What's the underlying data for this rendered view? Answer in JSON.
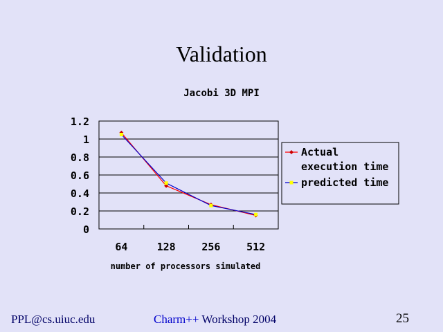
{
  "slide": {
    "title": "Validation",
    "footer_left": "PPL@cs.uiuc.edu",
    "footer_center_brand": "Charm++",
    "footer_center_rest": " Workshop 2004",
    "page_number": "25"
  },
  "chart_data": {
    "type": "line",
    "title": "Jacobi 3D MPI",
    "xlabel": "number of processors simulated",
    "ylabel": "",
    "categories": [
      "64",
      "128",
      "256",
      "512"
    ],
    "yticks": [
      "0",
      "0.2",
      "0.4",
      "0.6",
      "0.8",
      "1",
      "1.2"
    ],
    "ylim": [
      0,
      1.2
    ],
    "grid": true,
    "legend_position": "right",
    "series": [
      {
        "name_lines": [
          "Actual",
          "execution time"
        ],
        "values": [
          1.07,
          0.48,
          0.27,
          0.15
        ],
        "line_color": "#ff0000",
        "marker_color": "#cc0000",
        "marker": "diamond"
      },
      {
        "name_lines": [
          "predicted time"
        ],
        "values": [
          1.05,
          0.51,
          0.26,
          0.16
        ],
        "line_color": "#0000cc",
        "marker_color": "#ffff00",
        "marker": "square"
      }
    ]
  }
}
